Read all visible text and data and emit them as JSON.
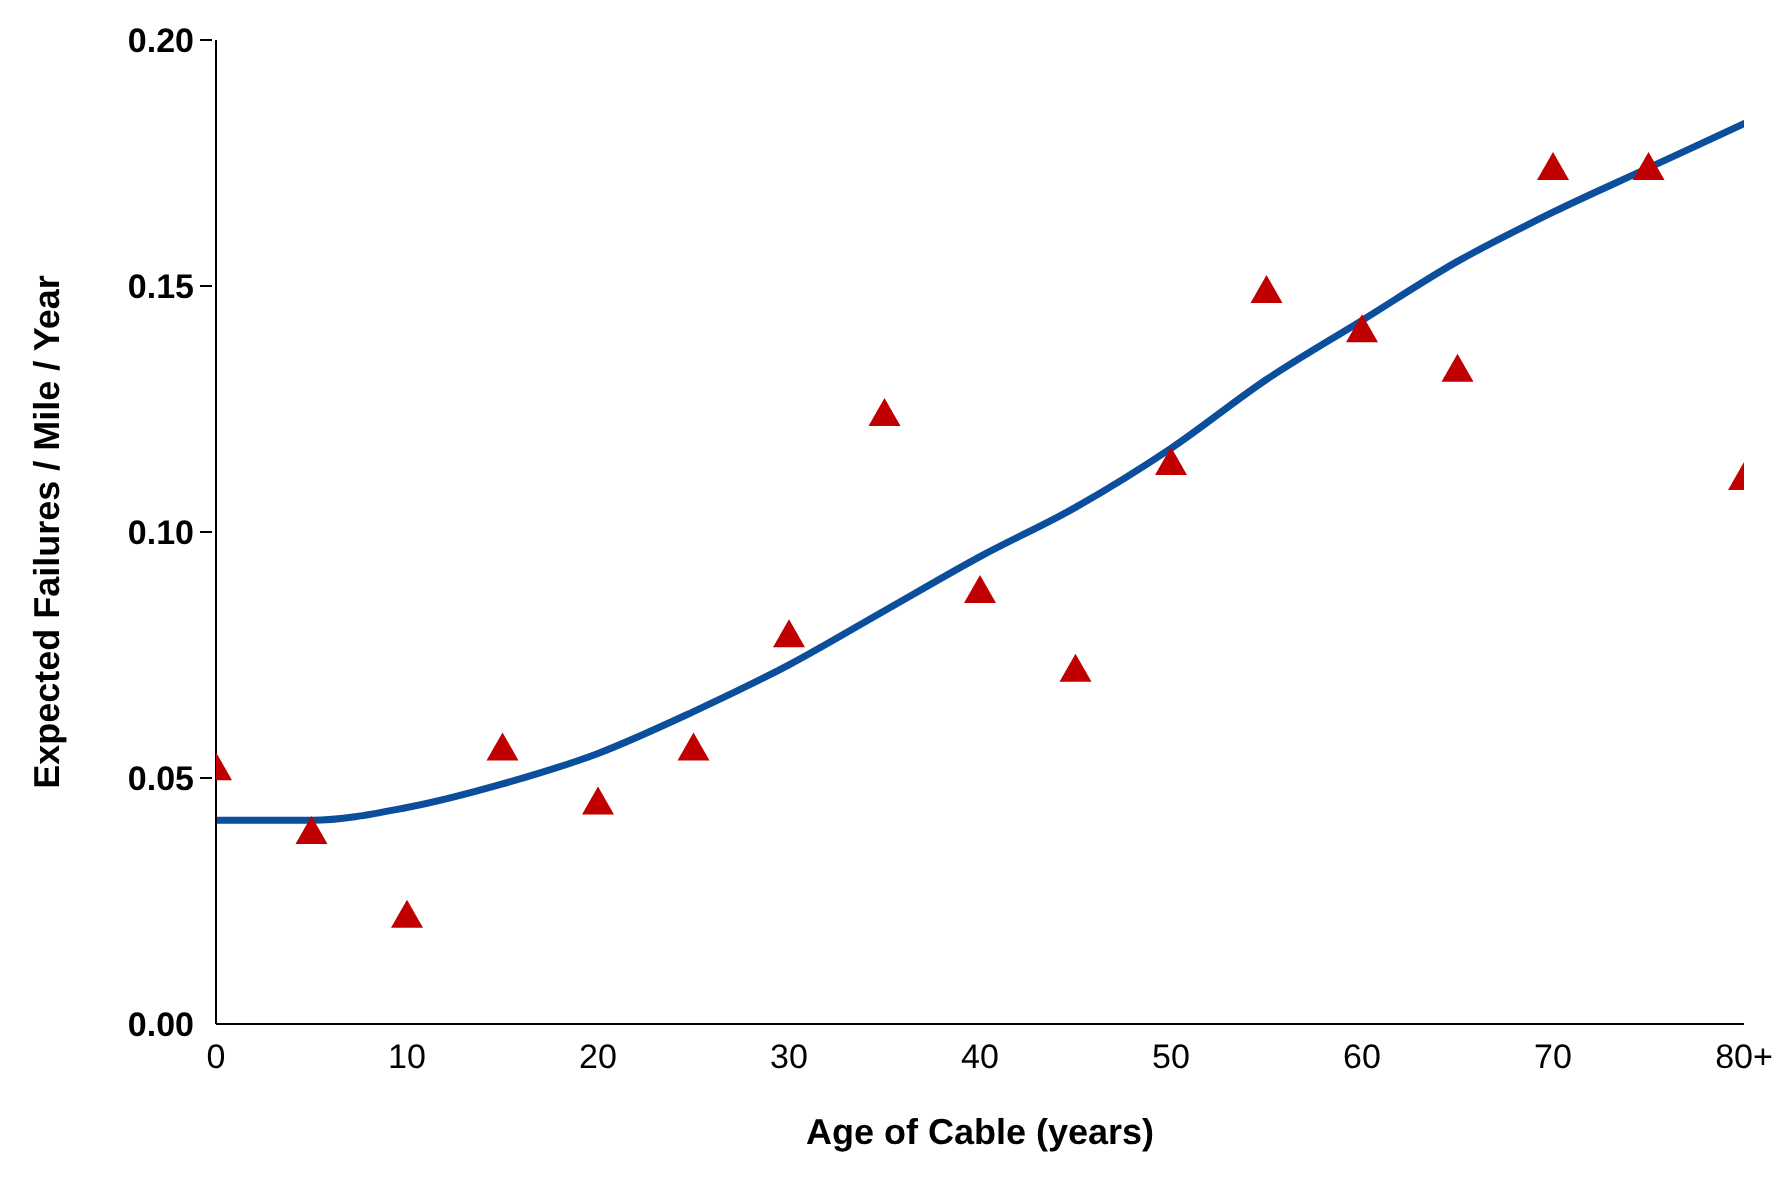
{
  "chart_data": {
    "type": "scatter",
    "xlabel": "Age of Cable (years)",
    "ylabel": "Expected Failures / Mile / Year",
    "xlim": [
      0,
      80
    ],
    "xticks": [
      0,
      10,
      20,
      30,
      40,
      50,
      60,
      70,
      {
        "value": 80,
        "label": "80+"
      }
    ],
    "ylim": [
      0,
      0.2
    ],
    "yticks": [
      {
        "value": 0,
        "label": "0.00"
      },
      {
        "value": 0.05,
        "label": "0.05"
      },
      {
        "value": 0.1,
        "label": "0.10"
      },
      {
        "value": 0.15,
        "label": "0.15"
      },
      {
        "value": 0.2,
        "label": "0.20"
      }
    ],
    "grid": false,
    "legend": false,
    "series": [
      {
        "color": "#c00000",
        "marker": "triangle",
        "x": [
          0,
          5,
          10,
          15,
          20,
          25,
          30,
          35,
          40,
          45,
          50,
          55,
          60,
          65,
          70,
          75,
          80
        ],
        "values": [
          0.052,
          0.039,
          0.022,
          0.056,
          0.045,
          0.056,
          0.079,
          0.124,
          0.088,
          0.072,
          0.114,
          0.149,
          0.141,
          0.133,
          0.174,
          0.174,
          0.111
        ]
      },
      {
        "type": "line",
        "color": "#0b4f9c",
        "marker": "none",
        "line_style": "solid",
        "x": [
          0,
          5,
          10,
          15,
          20,
          25,
          30,
          35,
          40,
          45,
          50,
          55,
          60,
          65,
          70,
          75,
          80
        ],
        "values": [
          0.0414,
          0.0414,
          0.044,
          0.0488,
          0.055,
          0.0635,
          0.073,
          0.084,
          0.095,
          0.105,
          0.117,
          0.131,
          0.143,
          0.155,
          0.165,
          0.174,
          0.183
        ]
      }
    ]
  }
}
